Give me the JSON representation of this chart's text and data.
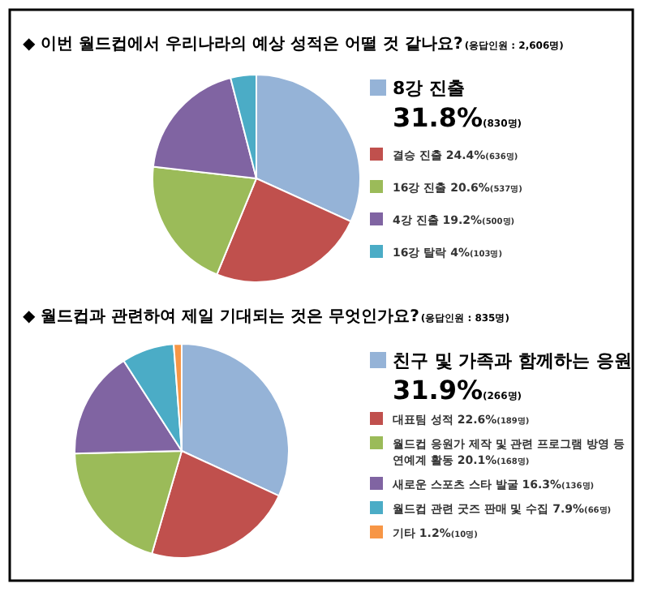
{
  "chart_data": [
    {
      "type": "pie",
      "title": "◆ 이번 월드컵에서 우리나라의 예상 성적은 어떨 것 같나요?",
      "subtitle": "(응답인원 : 2,606명)",
      "categories": [
        "8강 진출",
        "결승 진출",
        "16강 진출",
        "4강 진출",
        "16강 탈락"
      ],
      "values": [
        31.8,
        24.4,
        20.6,
        19.2,
        4
      ],
      "value_labels": [
        "31.8%(830명)",
        "24.4%(636명)",
        "20.6%(537명)",
        "19.2%(500명)",
        "4%(103명)"
      ],
      "colors": [
        "#95b3d7",
        "#c0504d",
        "#9bbb59",
        "#8064a2",
        "#4bacc6"
      ],
      "legend": "right"
    },
    {
      "type": "pie",
      "title": "◆ 월드컵과 관련하여 제일 기대되는 것은 무엇인가요?",
      "subtitle": "(응답인원 : 835명)",
      "categories": [
        "친구 및 가족과 함께하는 응원",
        "대표팀 성적",
        "월드컵 응원가 제작 및 관련 프로그램 방영 등 연예계 활동",
        "새로운 스포츠 스타 발굴",
        "월드컵 관련 굿즈 판매 및 수집",
        "기타"
      ],
      "values": [
        31.9,
        22.6,
        20.1,
        16.3,
        7.9,
        1.2
      ],
      "value_labels": [
        "31.9%(266명)",
        "22.6%(189명)",
        "20.1%(168명)",
        "16.3%(136명)",
        "7.9%(66명)",
        "1.2%(10명)"
      ],
      "colors": [
        "#95b3d7",
        "#c0504d",
        "#9bbb59",
        "#8064a2",
        "#4bacc6",
        "#f79646"
      ],
      "legend": "right"
    }
  ]
}
